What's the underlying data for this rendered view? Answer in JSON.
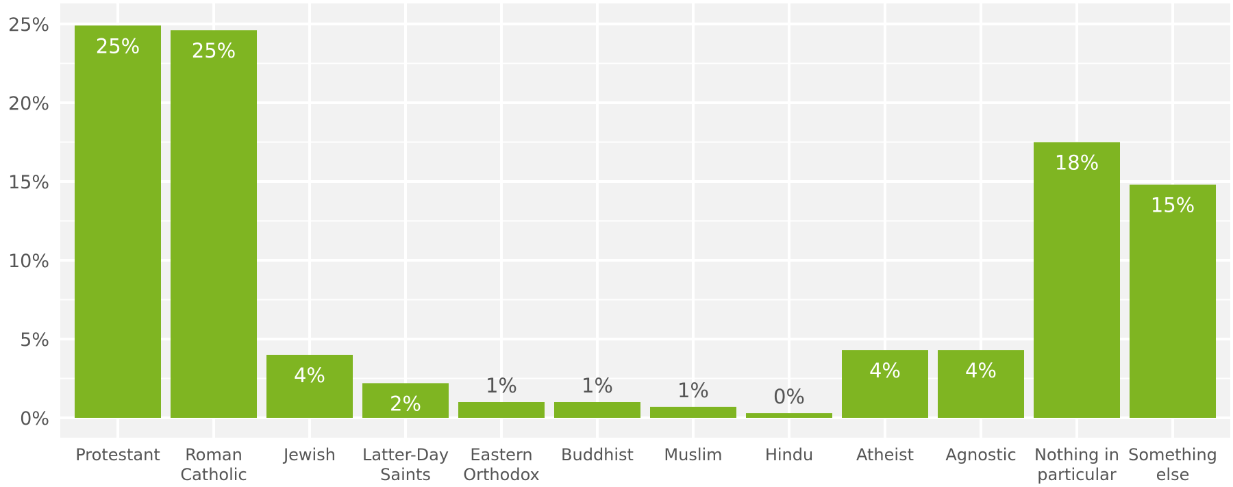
{
  "chart_data": {
    "type": "bar",
    "title": "",
    "xlabel": "",
    "ylabel": "",
    "ylim": [
      0,
      25
    ],
    "y_ticks": [
      "0%",
      "5%",
      "10%",
      "15%",
      "20%",
      "25%"
    ],
    "y_tick_values": [
      0,
      5,
      10,
      15,
      20,
      25
    ],
    "grid": true,
    "legend": "none",
    "categories": [
      [
        "Protestant"
      ],
      [
        "Roman",
        "Catholic"
      ],
      [
        "Jewish"
      ],
      [
        "Latter-Day",
        "Saints"
      ],
      [
        "Eastern",
        "Orthodox"
      ],
      [
        "Buddhist"
      ],
      [
        "Muslim"
      ],
      [
        "Hindu"
      ],
      [
        "Atheist"
      ],
      [
        "Agnostic"
      ],
      [
        "Nothing in",
        "particular"
      ],
      [
        "Something",
        "else"
      ]
    ],
    "values": [
      24.9,
      24.6,
      4.0,
      2.2,
      1.0,
      1.0,
      0.7,
      0.3,
      4.3,
      4.3,
      17.5,
      14.8
    ],
    "data_labels": [
      "25%",
      "25%",
      "4%",
      "2%",
      "1%",
      "1%",
      "1%",
      "0%",
      "4%",
      "4%",
      "18%",
      "15%"
    ],
    "colors": {
      "bar": "#7fb522",
      "panel": "#f2f2f2",
      "grid": "#ffffff",
      "label_inside": "#ffffff",
      "label_outside": "#555555"
    }
  }
}
